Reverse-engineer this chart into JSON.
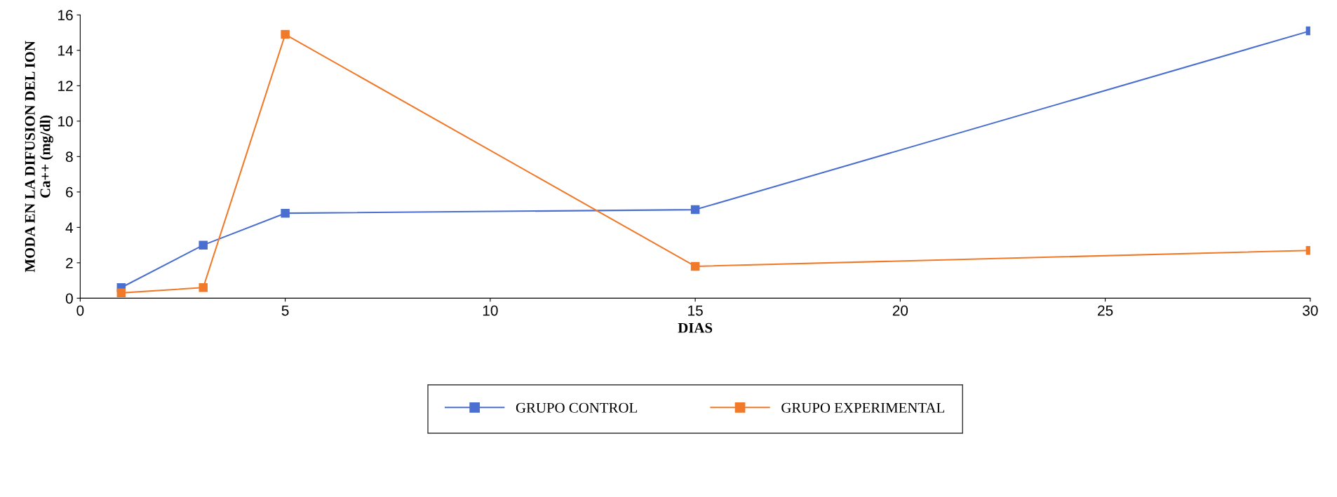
{
  "chart_data": {
    "type": "line",
    "xlabel": "DIAS",
    "ylabel": "MODA EN LA DIFUSION DEL ION\nCa++ (mg/dl)",
    "x": [
      1,
      3,
      5,
      15,
      30
    ],
    "series": [
      {
        "name": "GRUPO CONTROL",
        "color": "#4a6fd0",
        "values": [
          0.6,
          3.0,
          4.8,
          5.0,
          15.1
        ]
      },
      {
        "name": "GRUPO EXPERIMENTAL",
        "color": "#f07a2a",
        "values": [
          0.3,
          0.6,
          14.9,
          1.8,
          2.7
        ]
      }
    ],
    "xlim": [
      0,
      30
    ],
    "xticks": [
      0,
      5,
      10,
      15,
      20,
      25,
      30
    ],
    "ylim": [
      0,
      16
    ],
    "yticks": [
      0,
      2,
      4,
      6,
      8,
      10,
      12,
      14,
      16
    ],
    "marker": "square",
    "legend": "bottom",
    "grid": false
  }
}
